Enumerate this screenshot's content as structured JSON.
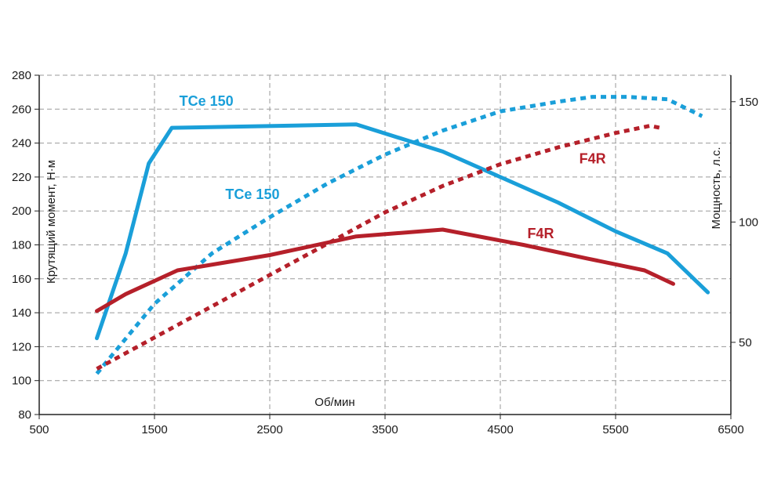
{
  "chart_data": {
    "type": "line",
    "title": "",
    "xlabel": "Об/мин",
    "ylabel_left": "Крутящий момент, Н·м",
    "ylabel_right": "Мощность, л.с.",
    "xlim": [
      500,
      6500
    ],
    "ylim_left": [
      80,
      280
    ],
    "ylim_right": [
      20,
      161
    ],
    "x_ticks": [
      "500",
      "1500",
      "2500",
      "3500",
      "4500",
      "5500",
      "6500"
    ],
    "x_tick_values": [
      500,
      1500,
      2500,
      3500,
      4500,
      5500,
      6500
    ],
    "y_left_ticks": [
      "80",
      "100",
      "120",
      "140",
      "160",
      "180",
      "200",
      "220",
      "240",
      "260",
      "280"
    ],
    "y_left_tick_values": [
      80,
      100,
      120,
      140,
      160,
      180,
      200,
      220,
      240,
      260,
      280
    ],
    "y_right_ticks": [
      "50",
      "100",
      "150"
    ],
    "y_right_tick_values": [
      50,
      100,
      150
    ],
    "grid": true,
    "colors": {
      "tce": "#1a9fd9",
      "f4r": "#b5202a"
    },
    "series": [
      {
        "name": "TCe 150",
        "kind": "torque",
        "axis": "left",
        "style": "solid",
        "color": "#1a9fd9",
        "x": [
          1000,
          1250,
          1450,
          1650,
          3250,
          4000,
          5000,
          5500,
          5950,
          6300
        ],
        "y": [
          125,
          175,
          228,
          249,
          251,
          235,
          205,
          188,
          175,
          152
        ]
      },
      {
        "name": "TCe 150",
        "kind": "power",
        "axis": "right",
        "style": "dotted",
        "color": "#1a9fd9",
        "x": [
          1000,
          1500,
          2000,
          2500,
          3000,
          3500,
          4000,
          4500,
          5000,
          5300,
          5600,
          5950,
          6250
        ],
        "y": [
          37,
          66,
          87,
          102,
          116,
          128,
          138,
          146,
          150,
          152,
          152,
          151,
          144
        ]
      },
      {
        "name": "F4R",
        "kind": "torque",
        "axis": "left",
        "style": "solid",
        "color": "#b5202a",
        "x": [
          1000,
          1250,
          1700,
          2500,
          3250,
          4000,
          4700,
          5250,
          5750,
          6000
        ],
        "y": [
          141,
          151,
          165,
          174,
          185,
          189,
          180,
          172,
          165,
          157
        ]
      },
      {
        "name": "F4R",
        "kind": "power",
        "axis": "right",
        "style": "dotted",
        "color": "#b5202a",
        "x": [
          1000,
          1500,
          2000,
          2500,
          3000,
          3500,
          4000,
          4500,
          5000,
          5500,
          5800,
          5900
        ],
        "y": [
          39,
          52,
          65,
          78,
          91,
          104,
          115,
          124,
          131,
          137,
          140,
          139
        ]
      }
    ],
    "annotations": [
      {
        "text": "TCe 150",
        "x": 1950,
        "y_left": 262,
        "color": "#1a9fd9"
      },
      {
        "text": "TCe 150",
        "x": 2350,
        "y_left": 207,
        "color": "#1a9fd9"
      },
      {
        "text": "F4R",
        "x": 4850,
        "y_left": 184,
        "color": "#b5202a"
      },
      {
        "text": "F4R",
        "x": 5300,
        "y_left": 228,
        "color": "#b5202a"
      }
    ]
  }
}
